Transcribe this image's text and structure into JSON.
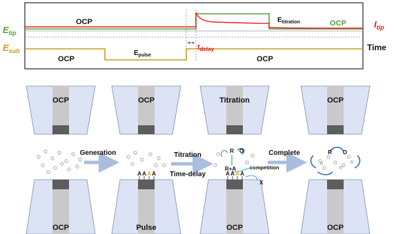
{
  "timing": {
    "y_labels": {
      "e_tip": "E",
      "e_tip_sub": "tip",
      "e_sub": "E",
      "e_sub_sub": "sub",
      "i_tip": "I",
      "i_tip_sub": "tip",
      "time": "Time"
    },
    "tip_trace": {
      "ocp_label": "OCP",
      "titration_label": "E",
      "titration_sub": "titration",
      "ocp_right_label": "OCP"
    },
    "sub_trace": {
      "ocp_left_label": "OCP",
      "pulse_label": "E",
      "pulse_sub": "pulse",
      "ocp_right_label": "OCP"
    },
    "delay": {
      "label": "t",
      "label_sub": "delay"
    },
    "colors": {
      "tip": "#5a9e3a",
      "current": "#e8221c",
      "sub": "#c99a1c",
      "guide": "#888888"
    }
  },
  "stages": [
    {
      "tip_label": "OCP",
      "sub_label": "OCP",
      "arrow_label": "Generation"
    },
    {
      "tip_label": "OCP",
      "sub_label": "Pulse",
      "arrow_label": "Titration",
      "arrow_label2": "Time-delay",
      "adsorbed": [
        "A",
        "A",
        "A",
        "A"
      ]
    },
    {
      "tip_label": "Titration",
      "sub_label": "OCP",
      "arrow_label": "Complete",
      "adsorbed": [
        "A",
        "A",
        "A",
        "A"
      ],
      "species": [
        "R",
        "O",
        "R+A",
        "competition",
        "X"
      ]
    },
    {
      "tip_label": "OCP",
      "sub_label": "OCP",
      "species": [
        "R",
        "O",
        "R",
        "R",
        "R"
      ]
    }
  ],
  "colors": {
    "electrode_body": "#dbe3f5",
    "electrode_core": "#c9c9c9",
    "electrode_tip": "#5d5d5d",
    "arrow": "#a9bedd",
    "redox_blue": "#2c6fb8",
    "redox_teal": "#3cb8c9",
    "species_gray": "#9a9a9a"
  }
}
